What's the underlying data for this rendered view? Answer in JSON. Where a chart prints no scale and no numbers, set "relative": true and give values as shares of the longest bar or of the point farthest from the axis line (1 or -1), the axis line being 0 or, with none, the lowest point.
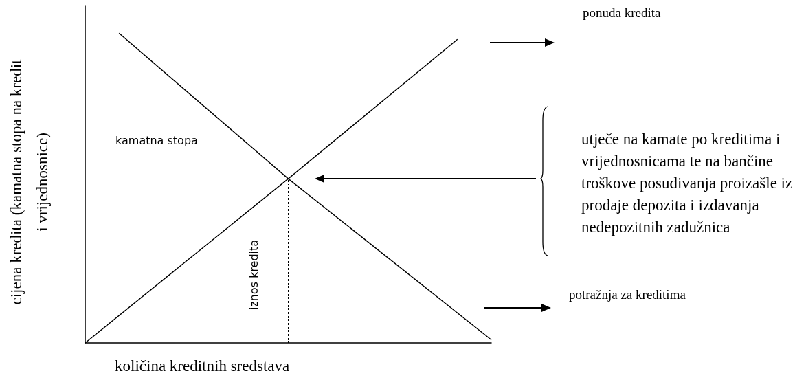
{
  "chart_data": {
    "type": "line",
    "relative": true,
    "xlabel": "količina kreditnih sredstava",
    "ylabel": "cijena kredita (kamatna stopa na kredit i vrijednosnice)",
    "grid": false,
    "legend": false,
    "marker": "none",
    "categories": [
      null,
      null,
      null,
      null,
      null,
      null,
      null,
      null,
      null,
      null,
      null,
      null,
      null,
      null,
      null,
      null,
      null,
      null,
      null,
      null,
      null,
      null,
      null,
      null,
      null
    ],
    "series": [
      {
        "name": "ponuda kredita",
        "color": "#000000",
        "values": [
          0,
          null,
          null,
          null,
          null,
          null,
          null,
          null,
          null,
          null,
          null,
          null,
          0.53,
          null,
          null,
          null,
          null,
          null,
          null,
          null,
          null,
          null,
          0.98,
          null,
          null
        ]
      },
      {
        "name": "potražnja za kreditima",
        "color": "#000000",
        "values": [
          null,
          null,
          1,
          null,
          null,
          null,
          null,
          null,
          null,
          null,
          null,
          null,
          0.53,
          null,
          null,
          null,
          null,
          null,
          null,
          null,
          null,
          null,
          null,
          null,
          0.01
        ]
      }
    ],
    "ref_lines": [
      {
        "axis": "y",
        "value": 0.53,
        "color": "#000000",
        "line_style": "dotted"
      },
      {
        "axis": "x",
        "label": "iznos kredita",
        "color": "#000000",
        "line_style": "dotted"
      }
    ],
    "annotations": [
      "kamatna stopa",
      "utječe na kamate po kreditima i vrijednosnicama te na bančine troškove posuđivanja proizašle iz prodaje depozita i izdavanja nedepozitnih zadužnica"
    ]
  }
}
